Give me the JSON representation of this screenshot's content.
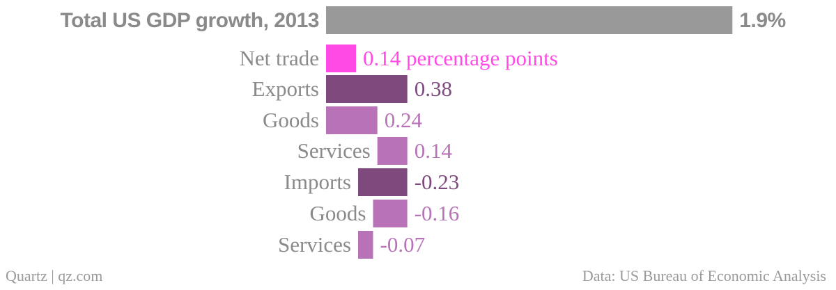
{
  "chart_data": {
    "type": "bar",
    "orientation": "horizontal",
    "title": "",
    "rows": [
      {
        "label": "Total US GDP growth, 2013",
        "value": 1.9,
        "value_label": "1.9%",
        "kind": "total",
        "scale": "gdp"
      },
      {
        "label": "Net trade",
        "value": 0.14,
        "value_label": "0.14 percentage points",
        "kind": "net",
        "scale": "pp"
      },
      {
        "label": "Exports",
        "value": 0.38,
        "value_label": "0.38",
        "kind": "group",
        "scale": "pp"
      },
      {
        "label": "Goods",
        "value": 0.24,
        "value_label": "0.24",
        "kind": "sub",
        "scale": "pp"
      },
      {
        "label": "Services",
        "value": 0.14,
        "value_label": "0.14",
        "kind": "sub",
        "scale": "pp"
      },
      {
        "label": "Imports",
        "value": -0.23,
        "value_label": "-0.23",
        "kind": "group",
        "scale": "pp"
      },
      {
        "label": "Goods",
        "value": -0.16,
        "value_label": "-0.16",
        "kind": "sub",
        "scale": "pp"
      },
      {
        "label": "Services",
        "value": -0.07,
        "value_label": "-0.07",
        "kind": "sub",
        "scale": "pp"
      }
    ],
    "colors": {
      "total": "#999999",
      "net": "#ff4ae6",
      "group": "#7e4a7e",
      "sub": "#b872b8",
      "label": "#8a8a8a",
      "title": "#8a8a8a"
    }
  },
  "footer": {
    "left": "Quartz | qz.com",
    "right": "Data: US Bureau of Economic Analysis"
  }
}
